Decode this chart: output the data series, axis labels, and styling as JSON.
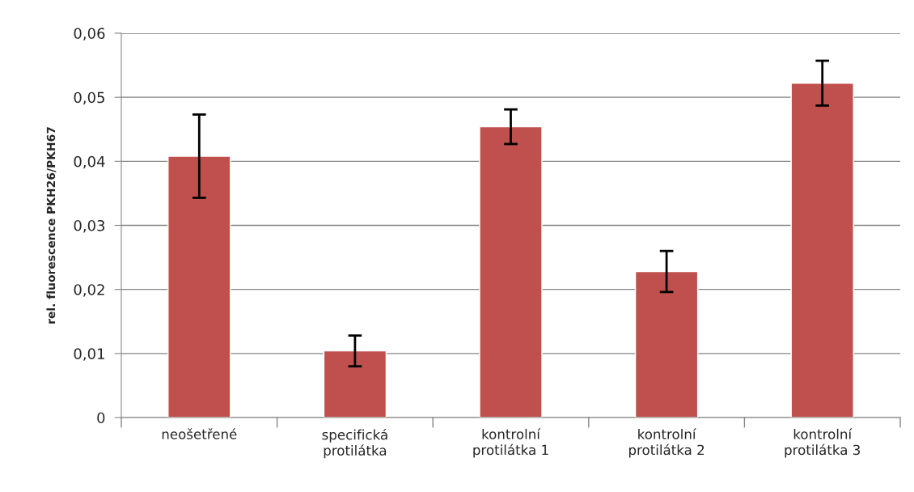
{
  "chart_data": {
    "type": "bar",
    "ylabel": "rel. fluorescence PKH26/PKH67",
    "categories": [
      "neošetřené",
      "specifická\nprotilátka",
      "kontrolní\nprotilátka 1",
      "kontrolní\nprotilátka 2",
      "kontrolní\nprotilátka 3"
    ],
    "values": [
      0.0408,
      0.0104,
      0.0454,
      0.0228,
      0.0522
    ],
    "errors": [
      0.0065,
      0.0024,
      0.0027,
      0.0032,
      0.0035
    ],
    "color": "#c0504d",
    "ylim": [
      0,
      0.06
    ],
    "yticks": [
      {
        "value": 0,
        "label": "0"
      },
      {
        "value": 0.01,
        "label": "0,01"
      },
      {
        "value": 0.02,
        "label": "0,02"
      },
      {
        "value": 0.03,
        "label": "0,03"
      },
      {
        "value": 0.04,
        "label": "0,04"
      },
      {
        "value": 0.05,
        "label": "0,05"
      },
      {
        "value": 0.06,
        "label": "0,06"
      }
    ],
    "grid": "y"
  }
}
